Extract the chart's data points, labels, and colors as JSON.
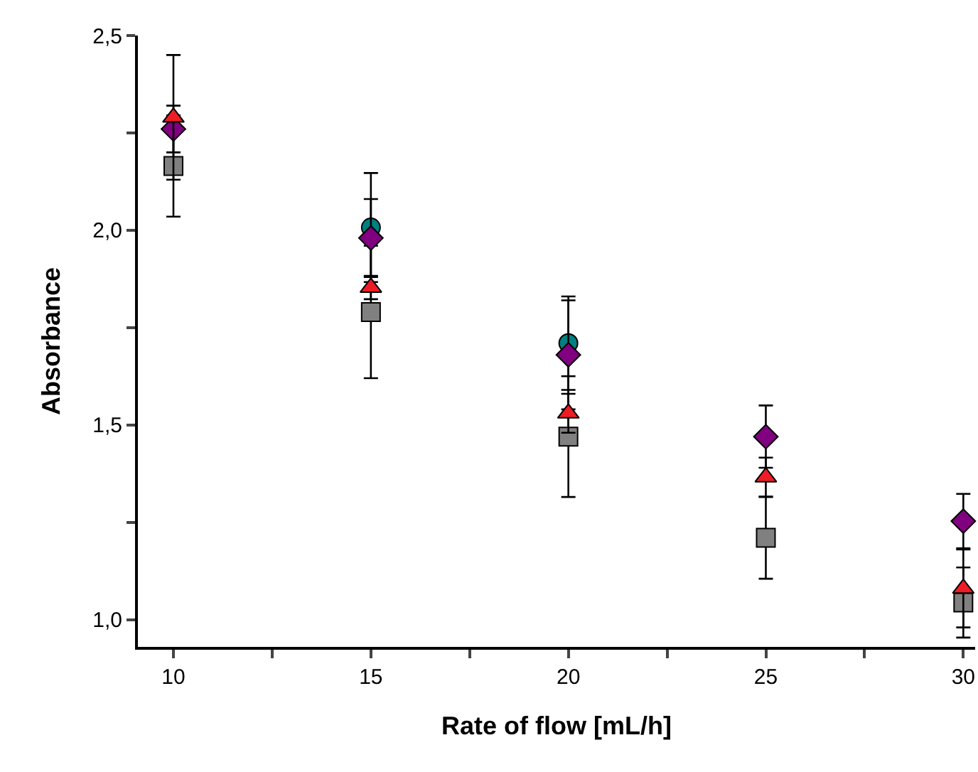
{
  "chart_data": {
    "type": "scatter",
    "xlabel": "Rate of flow [mL/h]",
    "ylabel": "Absorbance",
    "x": [
      10,
      15,
      20,
      25,
      30
    ],
    "series": [
      {
        "color": "#808080",
        "marker": "square",
        "values": [
          2.165,
          1.79,
          1.47,
          1.21,
          1.044
        ],
        "errors": [
          0.13,
          0.17,
          0.155,
          0.105,
          0.09
        ]
      },
      {
        "color": "#008080",
        "marker": "circle",
        "values": [
          null,
          2.007,
          1.71,
          null,
          null
        ],
        "errors": [
          null,
          0.14,
          0.12,
          null,
          null
        ]
      },
      {
        "color": "#800080",
        "marker": "diamond",
        "values": [
          2.26,
          1.98,
          1.68,
          1.47,
          1.253
        ],
        "errors": [
          0.06,
          0.1,
          0.14,
          0.08,
          0.07
        ]
      },
      {
        "color": "#ee1c25",
        "marker": "triangle",
        "values": [
          2.29,
          1.853,
          1.53,
          1.366,
          1.08
        ],
        "errors": [
          0.16,
          0.03,
          0.05,
          0.05,
          0.1
        ]
      }
    ],
    "xlim": [
      9.1,
      30.3
    ],
    "xticks": [
      10,
      {
        "value": 12.5,
        "label": null
      },
      15,
      {
        "value": 17.5,
        "label": null
      },
      20,
      {
        "value": 22.5,
        "label": null
      },
      25,
      {
        "value": 27.5,
        "label": null
      },
      30
    ],
    "ylim": [
      0.93,
      2.5
    ],
    "yticks": [
      {
        "value": 1.0,
        "label": "1,0"
      },
      {
        "value": 1.25,
        "label": null
      },
      {
        "value": 1.5,
        "label": "1,5"
      },
      {
        "value": 1.75,
        "label": null
      },
      {
        "value": 2.0,
        "label": "2,0"
      },
      {
        "value": 2.25,
        "label": null
      },
      {
        "value": 2.5,
        "label": "2,5"
      }
    ],
    "grid": false
  }
}
